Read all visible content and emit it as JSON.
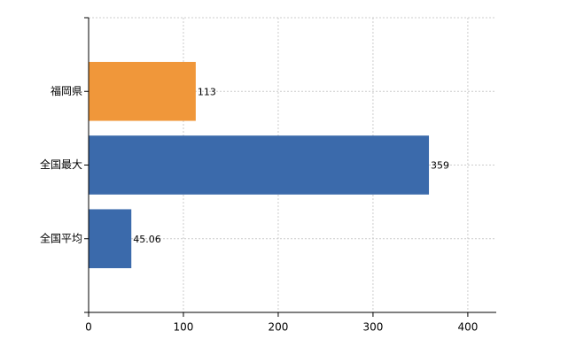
{
  "chart_data": {
    "type": "hbar",
    "categories": [
      "福岡県",
      "全国最大",
      "全国平均"
    ],
    "values": [
      113,
      359,
      45.06
    ],
    "colors": [
      "#f0973a",
      "#3b6aab",
      "#3b6aab"
    ],
    "xlim": [
      0,
      430
    ],
    "xticks": [
      0,
      100,
      200,
      300,
      400
    ],
    "grid": true
  }
}
